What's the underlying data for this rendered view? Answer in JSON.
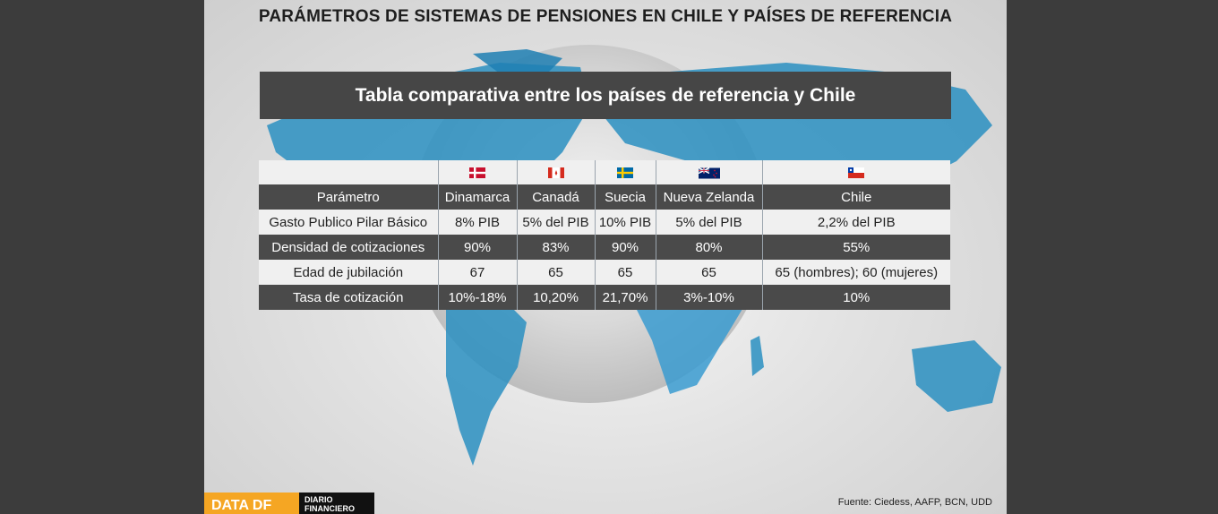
{
  "title": "PARÁMETROS DE SISTEMAS DE PENSIONES EN CHILE Y PAÍSES DE REFERENCIA",
  "subtitle": "Tabla comparativa entre los países de referencia y Chile",
  "table": {
    "flags": [
      "denmark-flag-icon",
      "canada-flag-icon",
      "sweden-flag-icon",
      "new-zealand-flag-icon",
      "chile-flag-icon"
    ],
    "header": [
      "Parámetro",
      "Dinamarca",
      "Canadá",
      "Suecia",
      "Nueva Zelanda",
      "Chile"
    ],
    "rows": [
      [
        "Gasto Publico Pilar Básico",
        "8% PIB",
        "5% del PIB",
        "10% PIB",
        "5% del PIB",
        "2,2% del PIB"
      ],
      [
        "Densidad de cotizaciones",
        "90%",
        "83%",
        "90%",
        "80%",
        "55%"
      ],
      [
        "Edad de jubilación",
        "67",
        "65",
        "65",
        "65",
        "65 (hombres); 60 (mujeres)"
      ],
      [
        "Tasa de cotización",
        "10%-18%",
        "10,20%",
        "21,70%",
        "3%-10%",
        "10%"
      ]
    ]
  },
  "source": "Fuente: Ciedess, AAFP, BCN, UDD",
  "logo": {
    "data_text": "DATA DF",
    "brand_line1": "DIARIO",
    "brand_line2": "FINANCIERO"
  },
  "colors": {
    "dark_row": "#4a4a4a",
    "light_row": "#f0f0f0",
    "map_blue": "#2a8fc1",
    "logo_orange": "#f5a623"
  }
}
